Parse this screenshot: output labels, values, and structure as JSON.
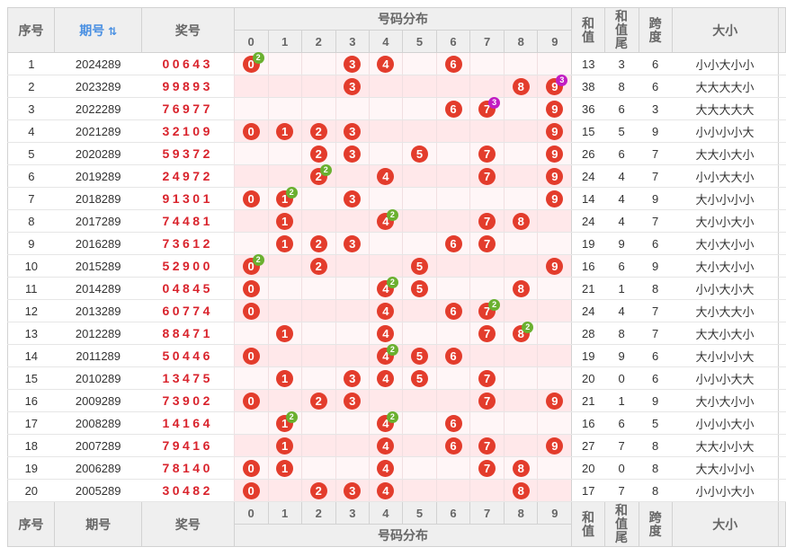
{
  "header": {
    "idx": "序号",
    "period": "期号",
    "sort_icon": "sort-icon",
    "draw": "奖号",
    "dist": "号码分布",
    "digits": [
      "0",
      "1",
      "2",
      "3",
      "4",
      "5",
      "6",
      "7",
      "8",
      "9"
    ],
    "sum": "和值",
    "sum_tail": "和值尾",
    "span": "跨度",
    "size": "大小"
  },
  "footer": {
    "idx": "序号",
    "period": "期号",
    "draw": "奖号",
    "dist": "号码分布",
    "digits": [
      "0",
      "1",
      "2",
      "3",
      "4",
      "5",
      "6",
      "7",
      "8",
      "9"
    ],
    "sum": "和值",
    "sum_tail": "和值尾",
    "span": "跨度",
    "size": "大小"
  },
  "colors": {
    "ball": "#e33c2c",
    "badge_two": "#6ab02f",
    "badge_three": "#c21dc2",
    "draw_text": "#d9232c",
    "link": "#4a90e2"
  },
  "rows": [
    {
      "idx": "1",
      "period": "2024289",
      "draw": "00643",
      "sum": "13",
      "tail": "3",
      "span": "6",
      "size": "小小大小小"
    },
    {
      "idx": "2",
      "period": "2023289",
      "draw": "99893",
      "sum": "38",
      "tail": "8",
      "span": "6",
      "size": "大大大大小"
    },
    {
      "idx": "3",
      "period": "2022289",
      "draw": "76977",
      "sum": "36",
      "tail": "6",
      "span": "3",
      "size": "大大大大大"
    },
    {
      "idx": "4",
      "period": "2021289",
      "draw": "32109",
      "sum": "15",
      "tail": "5",
      "span": "9",
      "size": "小小小小大"
    },
    {
      "idx": "5",
      "period": "2020289",
      "draw": "59372",
      "sum": "26",
      "tail": "6",
      "span": "7",
      "size": "大大小大小"
    },
    {
      "idx": "6",
      "period": "2019289",
      "draw": "24972",
      "sum": "24",
      "tail": "4",
      "span": "7",
      "size": "小小大大小"
    },
    {
      "idx": "7",
      "period": "2018289",
      "draw": "91301",
      "sum": "14",
      "tail": "4",
      "span": "9",
      "size": "大小小小小"
    },
    {
      "idx": "8",
      "period": "2017289",
      "draw": "74481",
      "sum": "24",
      "tail": "4",
      "span": "7",
      "size": "大小小大小"
    },
    {
      "idx": "9",
      "period": "2016289",
      "draw": "73612",
      "sum": "19",
      "tail": "9",
      "span": "6",
      "size": "大小大小小"
    },
    {
      "idx": "10",
      "period": "2015289",
      "draw": "52900",
      "sum": "16",
      "tail": "6",
      "span": "9",
      "size": "大小大小小"
    },
    {
      "idx": "11",
      "period": "2014289",
      "draw": "04845",
      "sum": "21",
      "tail": "1",
      "span": "8",
      "size": "小小大小大"
    },
    {
      "idx": "12",
      "period": "2013289",
      "draw": "60774",
      "sum": "24",
      "tail": "4",
      "span": "7",
      "size": "大小大大小"
    },
    {
      "idx": "13",
      "period": "2012289",
      "draw": "88471",
      "sum": "28",
      "tail": "8",
      "span": "7",
      "size": "大大小大小"
    },
    {
      "idx": "14",
      "period": "2011289",
      "draw": "50446",
      "sum": "19",
      "tail": "9",
      "span": "6",
      "size": "大小小小大"
    },
    {
      "idx": "15",
      "period": "2010289",
      "draw": "13475",
      "sum": "20",
      "tail": "0",
      "span": "6",
      "size": "小小小大大"
    },
    {
      "idx": "16",
      "period": "2009289",
      "draw": "73902",
      "sum": "21",
      "tail": "1",
      "span": "9",
      "size": "大小大小小"
    },
    {
      "idx": "17",
      "period": "2008289",
      "draw": "14164",
      "sum": "16",
      "tail": "6",
      "span": "5",
      "size": "小小小大小"
    },
    {
      "idx": "18",
      "period": "2007289",
      "draw": "79416",
      "sum": "27",
      "tail": "7",
      "span": "8",
      "size": "大大小小大"
    },
    {
      "idx": "19",
      "period": "2006289",
      "draw": "78140",
      "sum": "20",
      "tail": "0",
      "span": "8",
      "size": "大大小小小"
    },
    {
      "idx": "20",
      "period": "2005289",
      "draw": "30482",
      "sum": "17",
      "tail": "7",
      "span": "8",
      "size": "小小小大小"
    }
  ]
}
